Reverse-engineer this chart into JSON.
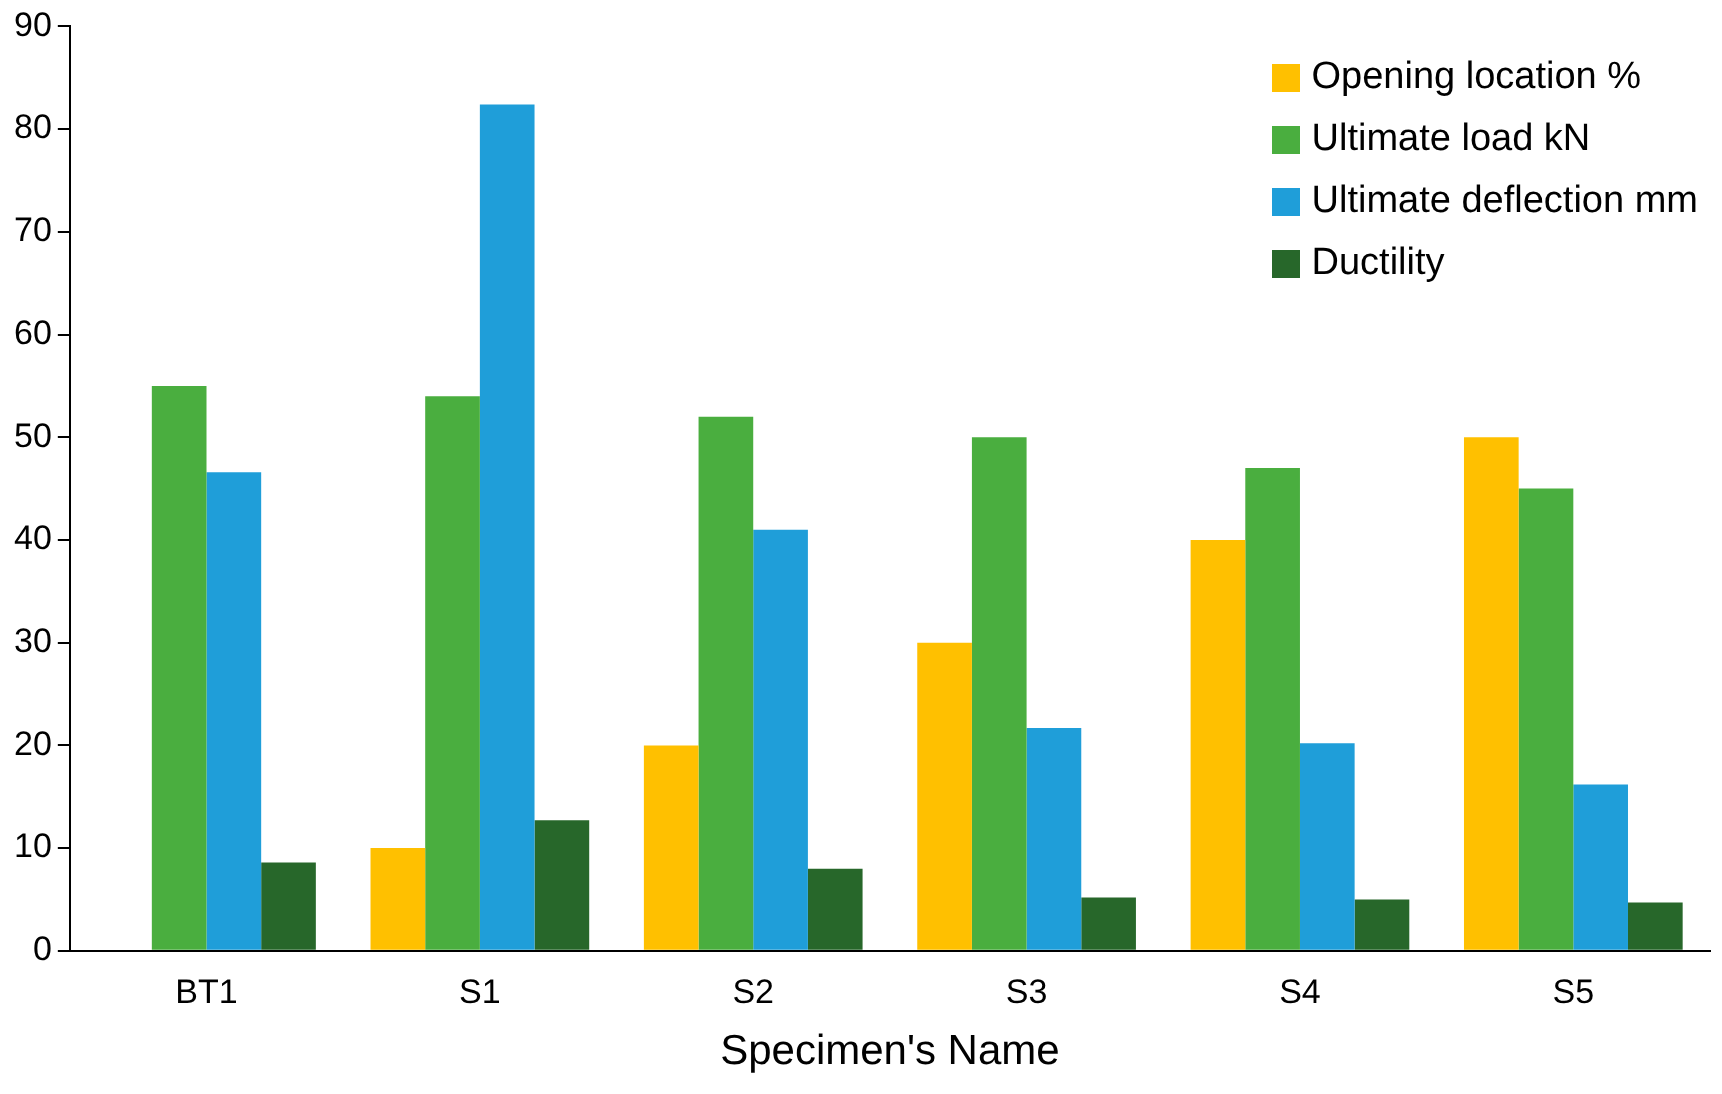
{
  "chart_data": {
    "type": "bar",
    "xlabel": "Specimen's Name",
    "categories": [
      "BT1",
      "S1",
      "S2",
      "S3",
      "S4",
      "S5"
    ],
    "series": [
      {
        "name": "Opening location %",
        "color": "#ffc000",
        "values": [
          0,
          10,
          20,
          30,
          40,
          50
        ]
      },
      {
        "name": "Ultimate load kN",
        "color": "#4aae3f",
        "values": [
          55,
          54,
          52,
          50,
          47,
          45
        ]
      },
      {
        "name": "Ultimate deflection mm",
        "color": "#1f9ed9",
        "values": [
          46.6,
          82.4,
          41,
          21.7,
          20.2,
          16.2
        ]
      },
      {
        "name": "Ductility",
        "color": "#27672a",
        "values": [
          8.6,
          12.7,
          8,
          5.2,
          5,
          4.7
        ]
      }
    ],
    "ylim": [
      0,
      90
    ],
    "yticks": [
      0,
      10,
      20,
      30,
      40,
      50,
      60,
      70,
      80,
      90
    ],
    "grid": false,
    "legend": "top right"
  }
}
